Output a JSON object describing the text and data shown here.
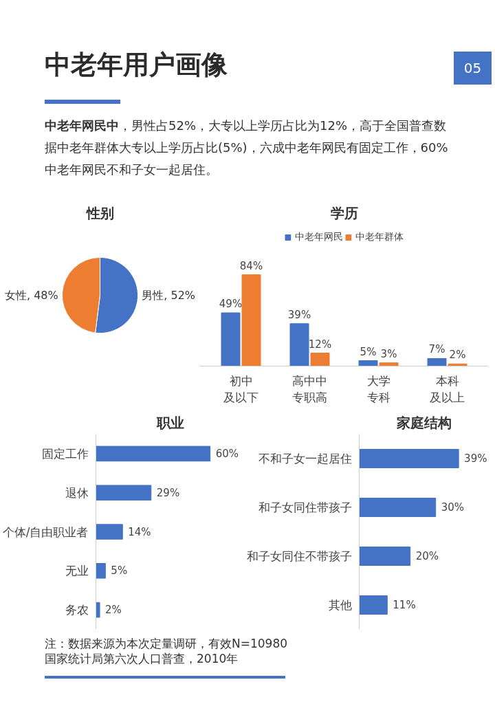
{
  "chart_data": [
    {
      "type": "other",
      "title": "中老年用户画像",
      "annotations": [
        "05",
        "中老年网民中",
        "，男性占52%，大专以上学历占比为12%，高于全国普查数据中老年群体大专以上学历占比(5%)，六成中老年网民有固定工作，60%中老年网民不和子女一起居住。"
      ]
    },
    {
      "type": "pie",
      "title": "性别",
      "categories": [
        "男性",
        "女性"
      ],
      "values": [
        52,
        48
      ],
      "colors": [
        "#4472c4",
        "#ed7d31"
      ],
      "value_labels": [
        "52%",
        "48%"
      ]
    },
    {
      "type": "bar",
      "title": "学历",
      "categories": [
        "初中及以下",
        "高中中专职高",
        "大学专科",
        "本科及以上"
      ],
      "legend": "top",
      "series": [
        {
          "name": "中老年网民",
          "color": "#4472c4",
          "values": [
            49,
            39,
            5,
            7
          ],
          "value_labels": [
            "49%",
            "39%",
            "5%",
            "7%"
          ]
        },
        {
          "name": "中老年群体",
          "color": "#ed7d31",
          "values": [
            84,
            12,
            3,
            2
          ],
          "value_labels": [
            "84%",
            "12%",
            "3%",
            "2%"
          ]
        }
      ]
    },
    {
      "type": "bar",
      "orientation": "horizontal",
      "title": "职业",
      "categories": [
        "固定工作",
        "退休",
        "个体/自由职业者",
        "无业",
        "务农"
      ],
      "values": [
        60,
        29,
        14,
        5,
        2
      ],
      "color": "#4472c4",
      "value_labels": [
        "60%",
        "29%",
        "14%",
        "5%",
        "2%"
      ]
    },
    {
      "type": "bar",
      "orientation": "horizontal",
      "title": "家庭结构",
      "categories": [
        "不和子女一起居住",
        "和子女同住带孩子",
        "和子女同住不带孩子",
        "其他"
      ],
      "values": [
        39,
        30,
        20,
        11
      ],
      "color": "#4472c4",
      "value_labels": [
        "39%",
        "30%",
        "20%",
        "11%"
      ]
    },
    {
      "type": "other",
      "annotations": [
        "注：数据来源为本次定量调研，有效N=10980",
        "国家统计局第六次人口普查，2010年"
      ]
    }
  ]
}
